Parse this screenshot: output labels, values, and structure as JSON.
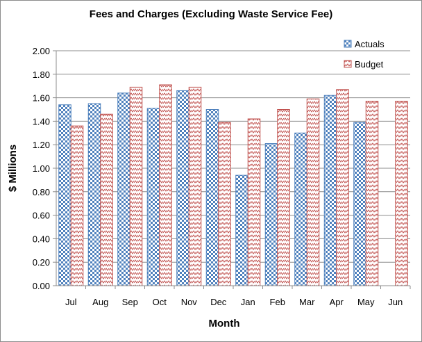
{
  "chart_data": {
    "type": "bar",
    "title": "Fees and Charges (Excluding  Waste Service Fee)",
    "xlabel": "Month",
    "ylabel": "$ Millions",
    "ylim": [
      0,
      2.0
    ],
    "ytick_step": 0.2,
    "grid": true,
    "legend_position": "top-right",
    "categories": [
      "Jul",
      "Aug",
      "Sep",
      "Oct",
      "Nov",
      "Dec",
      "Jan",
      "Feb",
      "Mar",
      "Apr",
      "May",
      "Jun"
    ],
    "series": [
      {
        "name": "Actuals",
        "color": "#4f81bd",
        "pattern": "checkerboard",
        "values": [
          1.54,
          1.55,
          1.64,
          1.51,
          1.66,
          1.5,
          0.94,
          1.21,
          1.3,
          1.62,
          1.39,
          null
        ]
      },
      {
        "name": "Budget",
        "color": "#c0504d",
        "pattern": "zigzag",
        "values": [
          1.36,
          1.46,
          1.69,
          1.71,
          1.69,
          1.39,
          1.42,
          1.5,
          1.59,
          1.67,
          1.57,
          1.57
        ]
      }
    ]
  }
}
